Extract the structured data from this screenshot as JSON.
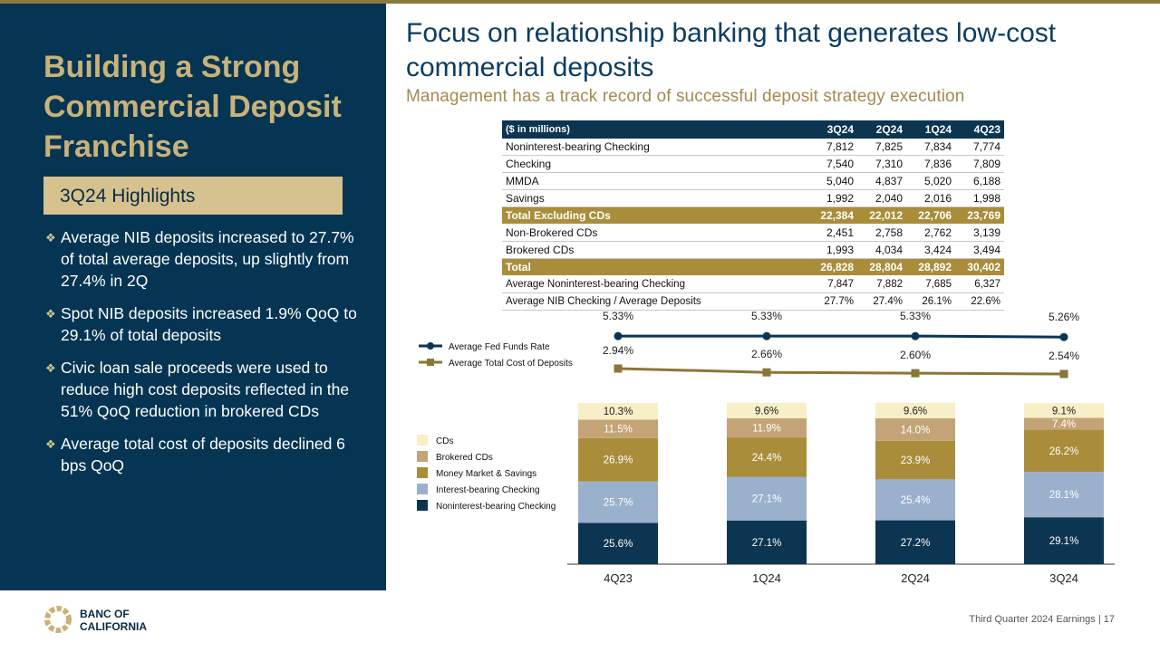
{
  "left": {
    "title": "Building a Strong Commercial Deposit Franchise",
    "highlights_label": "3Q24 Highlights",
    "bullets": [
      "Average NIB deposits increased to 27.7% of total average deposits, up slightly from 27.4% in 2Q",
      "Spot NIB deposits increased 1.9% QoQ to 29.1% of total deposits",
      "Civic loan sale proceeds were used to reduce high cost deposits reflected in the 51% QoQ reduction in brokered CDs",
      "Average total cost of deposits declined 6 bps QoQ"
    ]
  },
  "header": {
    "title": "Focus on relationship banking that generates low-cost commercial deposits",
    "subtitle": "Management has a track record of successful deposit strategy execution"
  },
  "table": {
    "unit_label": "($ in millions)",
    "columns": [
      "3Q24",
      "2Q24",
      "1Q24",
      "4Q23"
    ],
    "rows": [
      {
        "label": "Noninterest-bearing Checking",
        "values": [
          "7,812",
          "7,825",
          "7,834",
          "7,774"
        ]
      },
      {
        "label": "Checking",
        "values": [
          "7,540",
          "7,310",
          "7,836",
          "7,809"
        ]
      },
      {
        "label": "MMDA",
        "values": [
          "5,040",
          "4,837",
          "5,020",
          "6,188"
        ]
      },
      {
        "label": "Savings",
        "values": [
          "1,992",
          "2,040",
          "2,016",
          "1,998"
        ]
      },
      {
        "label": "Total Excluding CDs",
        "values": [
          "22,384",
          "22,012",
          "22,706",
          "23,769"
        ],
        "total": true
      },
      {
        "label": "Non-Brokered CDs",
        "values": [
          "2,451",
          "2,758",
          "2,762",
          "3,139"
        ]
      },
      {
        "label": "Brokered CDs",
        "values": [
          "1,993",
          "4,034",
          "3,424",
          "3,494"
        ]
      },
      {
        "label": "Total",
        "values": [
          "26,828",
          "28,804",
          "28,892",
          "30,402"
        ],
        "total": true
      },
      {
        "label": "Average Noninterest-bearing Checking",
        "values": [
          "7,847",
          "7,882",
          "7,685",
          "6,327"
        ],
        "small": true
      },
      {
        "label": "Average NIB Checking / Average Deposits",
        "values": [
          "27.7%",
          "27.4%",
          "26.1%",
          "22.6%"
        ],
        "small": true
      }
    ]
  },
  "chart_data": {
    "type": "bar",
    "categories": [
      "4Q23",
      "1Q24",
      "2Q24",
      "3Q24"
    ],
    "stacked": true,
    "series": [
      {
        "name": "Noninterest-bearing Checking",
        "values": [
          25.6,
          27.1,
          27.2,
          29.1
        ],
        "color": "#0b3550",
        "label_color": "#ffffff"
      },
      {
        "name": "Interest-bearing Checking",
        "values": [
          25.7,
          27.1,
          25.4,
          28.1
        ],
        "color": "#9bb0cd",
        "label_color": "#ffffff"
      },
      {
        "name": "Money Market & Savings",
        "values": [
          26.9,
          24.4,
          23.9,
          26.2
        ],
        "color": "#a98d3a",
        "label_color": "#ffffff"
      },
      {
        "name": "Brokered CDs",
        "values": [
          11.5,
          11.9,
          14.0,
          7.4
        ],
        "color": "#c4a477",
        "label_color": "#ffffff"
      },
      {
        "name": "CDs",
        "values": [
          10.3,
          9.6,
          9.6,
          9.1
        ],
        "color": "#f7efc6",
        "label_color": "#222222"
      }
    ],
    "lines": [
      {
        "name": "Average Fed Funds Rate",
        "values": [
          5.33,
          5.33,
          5.33,
          5.26
        ],
        "labels": [
          "5.33%",
          "5.33%",
          "5.33%",
          "5.26%"
        ],
        "color": "#0b3550",
        "marker": "circle"
      },
      {
        "name": "Average Total Cost of Deposits",
        "values": [
          2.94,
          2.66,
          2.6,
          2.54
        ],
        "labels": [
          "2.94%",
          "2.66%",
          "2.60%",
          "2.54%"
        ],
        "color": "#8a7636",
        "marker": "square"
      }
    ],
    "legend_order": [
      "CDs",
      "Brokered CDs",
      "Money Market & Savings",
      "Interest-bearing Checking",
      "Noninterest-bearing Checking"
    ],
    "line_legend_order": [
      "Average Fed Funds Rate",
      "Average Total Cost of Deposits"
    ],
    "legend_position": "left",
    "grid": false
  },
  "footer": {
    "logo_line1": "BANC OF",
    "logo_line2": "CALIFORNIA",
    "page_label": "Third Quarter 2024 Earnings |",
    "page_number": "17"
  }
}
